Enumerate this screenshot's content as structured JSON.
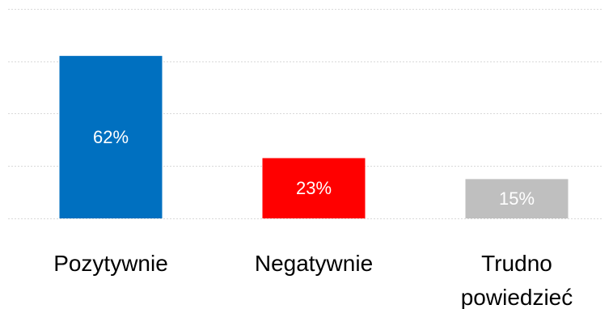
{
  "chart_data": {
    "type": "bar",
    "categories": [
      "Pozytywnie",
      "Negatywnie",
      "Trudno powiedzieć"
    ],
    "category_lines": [
      [
        "Pozytywnie"
      ],
      [
        "Negatywnie"
      ],
      [
        "Trudno",
        "powiedzieć"
      ]
    ],
    "values": [
      62,
      23,
      15
    ],
    "value_labels": [
      "62%",
      "23%",
      "15%"
    ],
    "colors": [
      "#0070c0",
      "#ff0000",
      "#bfbfbf"
    ],
    "title": "",
    "xlabel": "",
    "ylabel": "",
    "ylim": [
      0,
      80
    ],
    "y_gridlines": [
      20,
      40,
      60,
      80
    ],
    "grid": true,
    "legend": "none"
  }
}
